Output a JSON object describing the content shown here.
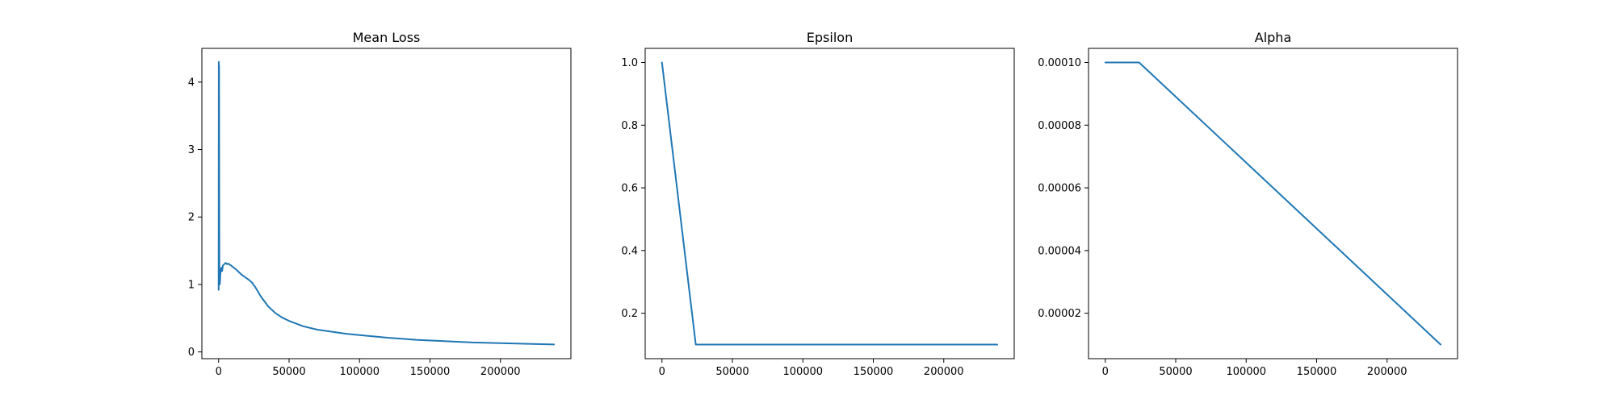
{
  "chart_data": [
    {
      "type": "line",
      "title": "Mean Loss",
      "xlabel": "",
      "ylabel": "",
      "xlim": [
        -11900,
        250000
      ],
      "ylim": [
        -0.1,
        4.5
      ],
      "xticks": [
        0,
        50000,
        100000,
        150000,
        200000
      ],
      "xtick_labels": [
        "0",
        "50000",
        "100000",
        "150000",
        "200000"
      ],
      "yticks": [
        0,
        1,
        2,
        3,
        4
      ],
      "ytick_labels": [
        "0",
        "1",
        "2",
        "3",
        "4"
      ],
      "grid": false,
      "color": "#1f77b4",
      "series": [
        {
          "x": [
            0,
            100,
            200,
            300,
            400,
            500,
            600,
            800,
            1000,
            1200,
            1500,
            2000,
            2500,
            3000,
            4000,
            5000,
            6000,
            7000,
            8000,
            9000,
            10000,
            12000,
            14000,
            16000,
            18000,
            20000,
            22000,
            24000,
            26000,
            28000,
            30000,
            35000,
            40000,
            45000,
            50000,
            60000,
            70000,
            80000,
            90000,
            100000,
            120000,
            140000,
            160000,
            180000,
            200000,
            220000,
            238000
          ],
          "y": [
            0.92,
            4.3,
            1.5,
            4.25,
            2.7,
            1.4,
            1.1,
            1.0,
            1.05,
            1.15,
            1.2,
            1.25,
            1.2,
            1.28,
            1.3,
            1.32,
            1.3,
            1.31,
            1.29,
            1.28,
            1.26,
            1.23,
            1.19,
            1.15,
            1.12,
            1.09,
            1.06,
            1.02,
            0.96,
            0.89,
            0.82,
            0.68,
            0.58,
            0.51,
            0.46,
            0.38,
            0.33,
            0.3,
            0.27,
            0.25,
            0.21,
            0.18,
            0.16,
            0.14,
            0.13,
            0.12,
            0.11
          ]
        }
      ]
    },
    {
      "type": "line",
      "title": "Epsilon",
      "xlabel": "",
      "ylabel": "",
      "xlim": [
        -11900,
        250000
      ],
      "ylim": [
        0.055,
        1.045
      ],
      "xticks": [
        0,
        50000,
        100000,
        150000,
        200000
      ],
      "xtick_labels": [
        "0",
        "50000",
        "100000",
        "150000",
        "200000"
      ],
      "yticks": [
        0.2,
        0.4,
        0.6,
        0.8,
        1.0
      ],
      "ytick_labels": [
        "0.2",
        "0.4",
        "0.6",
        "0.8",
        "1.0"
      ],
      "grid": false,
      "color": "#1f77b4",
      "series": [
        {
          "x": [
            0,
            24000,
            238000
          ],
          "y": [
            1.0,
            0.1,
            0.1
          ]
        }
      ]
    },
    {
      "type": "line",
      "title": "Alpha",
      "xlabel": "",
      "ylabel": "",
      "xlim": [
        -11900,
        250000
      ],
      "ylim": [
        5.5e-06,
        0.0001045
      ],
      "xticks": [
        0,
        50000,
        100000,
        150000,
        200000
      ],
      "xtick_labels": [
        "0",
        "50000",
        "100000",
        "150000",
        "200000"
      ],
      "yticks": [
        2e-05,
        4e-05,
        6e-05,
        8e-05,
        0.0001
      ],
      "ytick_labels": [
        "0.00002",
        "0.00004",
        "0.00006",
        "0.00008",
        "0.00010"
      ],
      "grid": false,
      "color": "#1f77b4",
      "series": [
        {
          "x": [
            0,
            24000,
            238000
          ],
          "y": [
            0.0001,
            0.0001,
            1e-05
          ]
        }
      ]
    }
  ]
}
